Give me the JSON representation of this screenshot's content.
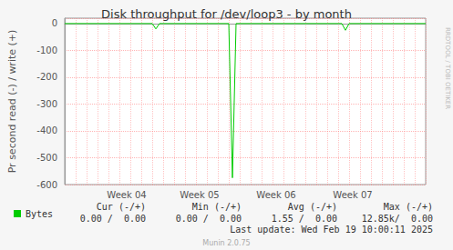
{
  "chart_data": {
    "type": "line",
    "title": "Disk throughput for /dev/loop3 - by month",
    "y_label": "Pr second read (-) / write (+)",
    "categories": [
      null,
      null,
      null,
      null,
      null,
      null,
      null,
      null,
      null,
      null,
      null,
      null,
      null,
      null,
      null,
      null,
      null,
      "Week 04",
      null,
      null,
      null,
      null,
      null,
      null,
      null,
      null,
      null,
      null,
      null,
      null,
      null,
      null,
      null,
      null,
      null,
      null,
      null,
      "Week 05",
      null,
      null,
      null,
      null,
      null,
      null,
      null,
      null,
      null,
      null,
      null,
      null,
      null,
      null,
      null,
      null,
      null,
      null,
      null,
      null,
      "Week 06",
      null,
      null,
      null,
      null,
      null,
      null,
      null,
      null,
      null,
      null,
      null,
      null,
      null,
      null,
      null,
      null,
      null,
      null,
      null,
      null,
      "Week 07",
      null,
      null,
      null,
      null,
      null,
      null,
      null,
      null,
      null,
      null,
      null,
      null,
      null,
      null,
      null,
      null,
      null,
      null,
      null,
      null
    ],
    "series": [
      {
        "name": "Bytes",
        "color": "#00cc00",
        "values": [
          0,
          0,
          0,
          0,
          0,
          0,
          0,
          0,
          0,
          0,
          0,
          0,
          0,
          0,
          0,
          0,
          0,
          0,
          0,
          0,
          0,
          0,
          0,
          0,
          0,
          -20,
          0,
          0,
          0,
          0,
          0,
          0,
          0,
          0,
          0,
          0,
          0,
          0,
          0,
          0,
          0,
          0,
          0,
          0,
          0,
          0,
          -575,
          0,
          0,
          0,
          0,
          0,
          0,
          0,
          0,
          0,
          0,
          0,
          0,
          0,
          0,
          0,
          0,
          0,
          0,
          0,
          0,
          0,
          0,
          0,
          0,
          0,
          0,
          0,
          0,
          0,
          0,
          -25,
          0,
          0,
          0,
          0,
          0,
          0,
          0,
          0,
          0,
          0,
          0,
          0,
          0,
          0,
          0,
          0,
          0,
          0,
          0,
          0,
          0,
          0
        ]
      }
    ],
    "ylim": [
      -600,
      20
    ],
    "yticks": [
      -600,
      -500,
      -400,
      -300,
      -200,
      -100,
      0
    ],
    "grid": true,
    "legend": "bottom-left",
    "summary": {
      "headers": [
        "Cur (-/+)",
        "Min (-/+)",
        "Avg (-/+)",
        "Max (-/+)"
      ],
      "values": [
        "0.00 /  0.00",
        "0.00 /  0.00",
        "1.55 /  0.00",
        "12.85k/  0.00"
      ]
    },
    "footer": "Last update: Wed Feb 19 10:00:11 2025",
    "credit": "Munin 2.0.75",
    "watermark": "RRDTOOL / TOBI OETIKER"
  }
}
